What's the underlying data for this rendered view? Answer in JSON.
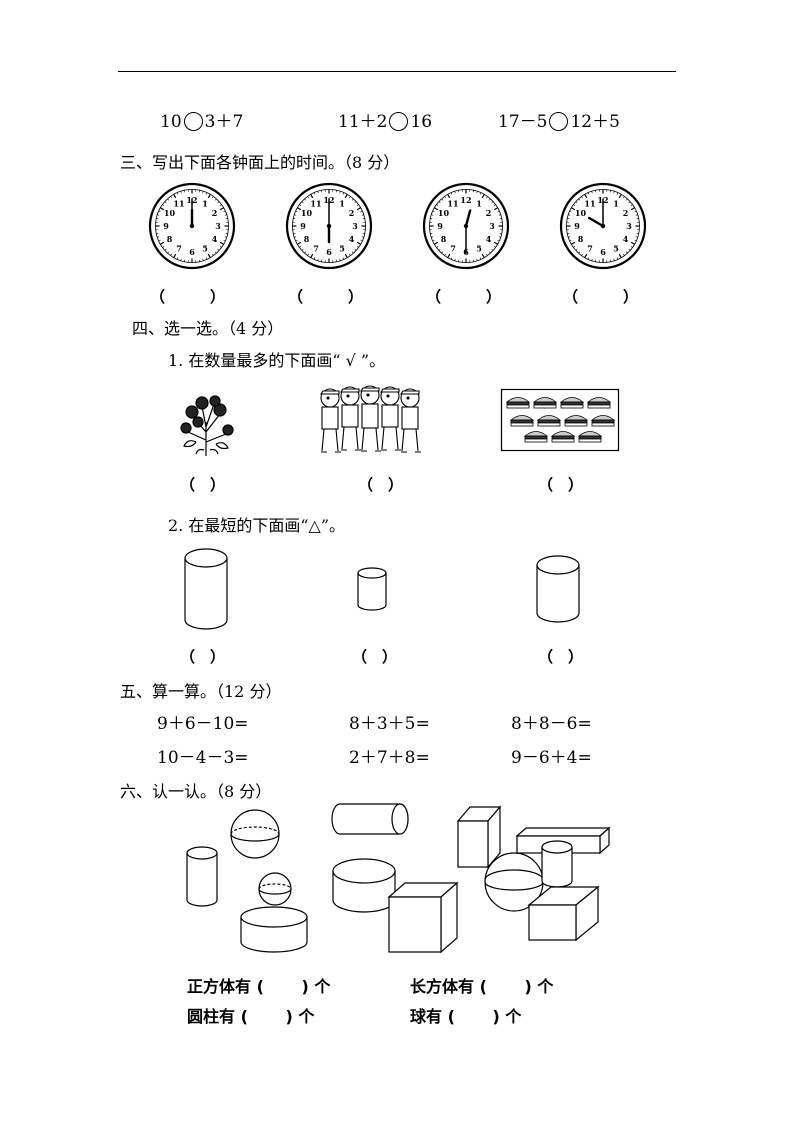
{
  "compare": [
    {
      "left": "10",
      "right": "3＋7"
    },
    {
      "left": "11＋2",
      "right": "16"
    },
    {
      "left": "17－5",
      "right": "12＋5"
    }
  ],
  "section3": {
    "title": "三、写出下面各钟面上的时间。（8 分）",
    "clock_numbers": [
      "12",
      "1",
      "2",
      "3",
      "4",
      "5",
      "6",
      "7",
      "8",
      "9",
      "10",
      "11"
    ],
    "clocks": [
      {
        "hour": 12,
        "minute": 0,
        "answer": "（　　　）"
      },
      {
        "hour": 6,
        "minute": 0,
        "answer": "（　　　）"
      },
      {
        "hour": 12,
        "minute": 30,
        "answer": "（　　　）"
      },
      {
        "hour": 10,
        "minute": 0,
        "answer": "（　　　）"
      }
    ]
  },
  "section4": {
    "title": "四、选一选。（4 分）",
    "q1": "1. 在数量最多的下面画“ √ ”。",
    "q1_answers": [
      "（　）",
      "（　）",
      "（　）"
    ],
    "q2": "2. 在最短的下面画“△”。",
    "q2_answers": [
      "（　）",
      "（　）",
      "（　）"
    ]
  },
  "section5": {
    "title": "五、算一算。（12 分）",
    "rows": [
      [
        "9＋6－10=",
        "8＋3＋5=",
        "8＋8－6="
      ],
      [
        "10－4－3=",
        "2＋7＋8=",
        "9－6＋4="
      ]
    ]
  },
  "section6": {
    "title": "六、认一认。（8 分）",
    "answers": [
      "正方体有 (　 　) 个",
      "长方体有 (　 　) 个",
      "圆柱有 (　 　) 个",
      "球有 (　 　) 个"
    ]
  }
}
